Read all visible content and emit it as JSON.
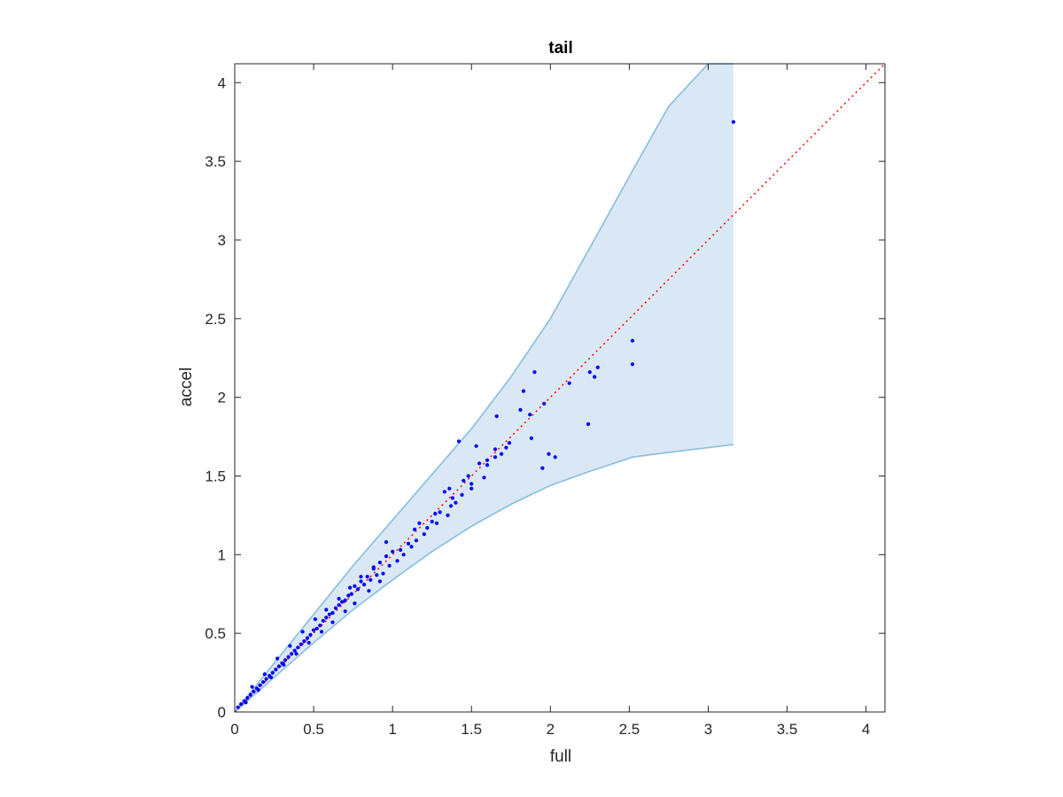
{
  "chart_data": {
    "type": "scatter",
    "title": "tail",
    "xlabel": "full",
    "ylabel": "accel",
    "xlim": [
      0,
      4.12
    ],
    "ylim": [
      0,
      4.12
    ],
    "xticks": [
      0,
      0.5,
      1,
      1.5,
      2,
      2.5,
      3,
      3.5,
      4
    ],
    "yticks": [
      0,
      0.5,
      1,
      1.5,
      2,
      2.5,
      3,
      3.5,
      4
    ],
    "xtick_labels": [
      "0",
      "0.5",
      "1",
      "1.5",
      "2",
      "2.5",
      "3",
      "3.5",
      "4"
    ],
    "ytick_labels": [
      "0",
      "0.5",
      "1",
      "1.5",
      "2",
      "2.5",
      "3",
      "3.5",
      "4"
    ],
    "grid": false,
    "box": true,
    "colors": {
      "points": "#0000ff",
      "band_fill": "#d9e8f4",
      "band_edge": "#88bde0",
      "reference_line": "#ff0000",
      "axes": "#262626"
    },
    "band": {
      "x": [
        0,
        0.25,
        0.5,
        0.75,
        1.0,
        1.25,
        1.5,
        1.75,
        2.0,
        2.25,
        2.52,
        2.75,
        3.0,
        3.16
      ],
      "upper": [
        0,
        0.31,
        0.62,
        0.93,
        1.22,
        1.51,
        1.8,
        2.13,
        2.5,
        2.95,
        3.44,
        3.85,
        4.12,
        4.12
      ],
      "lower": [
        0,
        0.22,
        0.44,
        0.65,
        0.84,
        1.02,
        1.18,
        1.32,
        1.44,
        1.53,
        1.62,
        1.65,
        1.68,
        1.7
      ]
    },
    "reference_line": {
      "style": "dotted",
      "x": [
        0,
        4.12
      ],
      "y": [
        0,
        4.12
      ]
    },
    "series": [
      {
        "x": [
          3.16,
          2.52,
          2.52,
          2.3,
          2.28,
          2.25,
          2.24,
          2.12,
          2.03,
          1.99,
          1.96,
          1.95,
          1.9,
          1.88,
          1.87,
          1.83,
          1.81,
          1.74,
          1.72,
          1.69,
          1.66,
          1.65,
          1.65,
          1.6,
          1.6,
          1.58,
          1.55,
          1.53,
          1.5,
          1.5,
          1.48,
          1.45,
          1.44,
          1.42,
          1.4,
          1.38,
          1.37,
          1.36,
          1.35,
          1.33,
          1.3,
          1.28,
          1.27,
          1.25,
          1.22,
          1.2,
          1.17,
          1.15,
          1.14,
          1.12,
          1.1,
          1.07,
          1.05,
          1.03,
          1.0,
          0.98,
          0.96,
          0.94,
          0.92,
          0.9,
          0.88,
          0.86,
          0.84,
          0.82,
          0.8,
          0.78,
          0.76,
          0.74,
          0.72,
          0.7,
          0.68,
          0.66,
          0.64,
          0.62,
          0.6,
          0.58,
          0.56,
          0.54,
          0.52,
          0.5,
          0.48,
          0.46,
          0.44,
          0.42,
          0.4,
          0.38,
          0.36,
          0.34,
          0.32,
          0.3,
          0.28,
          0.26,
          0.24,
          0.22,
          0.2,
          0.18,
          0.16,
          0.14,
          0.12,
          0.1,
          0.08,
          0.06,
          0.04,
          0.02,
          0.96,
          0.92,
          0.88,
          0.85,
          0.8,
          0.76,
          0.73,
          0.7,
          0.66,
          0.62,
          0.58,
          0.55,
          0.51,
          0.47,
          0.43,
          0.39,
          0.35,
          0.31,
          0.27,
          0.23,
          0.19,
          0.15,
          0.11,
          0.07
        ],
        "y": [
          3.75,
          2.36,
          2.21,
          2.19,
          2.13,
          2.16,
          1.83,
          2.09,
          1.62,
          1.64,
          1.96,
          1.55,
          2.16,
          1.74,
          1.89,
          2.04,
          1.92,
          1.71,
          1.68,
          1.64,
          1.88,
          1.62,
          1.67,
          1.57,
          1.6,
          1.49,
          1.58,
          1.69,
          1.45,
          1.42,
          1.5,
          1.47,
          1.38,
          1.72,
          1.33,
          1.36,
          1.31,
          1.42,
          1.25,
          1.4,
          1.27,
          1.2,
          1.26,
          1.21,
          1.17,
          1.13,
          1.2,
          1.09,
          1.16,
          1.05,
          1.07,
          1.0,
          1.03,
          0.96,
          1.02,
          0.93,
          0.99,
          0.88,
          0.95,
          0.87,
          0.92,
          0.84,
          0.86,
          0.81,
          0.83,
          0.78,
          0.8,
          0.75,
          0.74,
          0.71,
          0.7,
          0.68,
          0.66,
          0.63,
          0.62,
          0.6,
          0.58,
          0.55,
          0.53,
          0.52,
          0.49,
          0.47,
          0.45,
          0.43,
          0.41,
          0.39,
          0.37,
          0.35,
          0.33,
          0.31,
          0.29,
          0.27,
          0.25,
          0.23,
          0.21,
          0.19,
          0.17,
          0.15,
          0.13,
          0.11,
          0.09,
          0.07,
          0.05,
          0.03,
          1.08,
          0.83,
          0.91,
          0.77,
          0.86,
          0.69,
          0.79,
          0.64,
          0.72,
          0.57,
          0.65,
          0.51,
          0.59,
          0.44,
          0.51,
          0.37,
          0.42,
          0.3,
          0.34,
          0.22,
          0.24,
          0.14,
          0.16,
          0.06
        ]
      }
    ]
  }
}
